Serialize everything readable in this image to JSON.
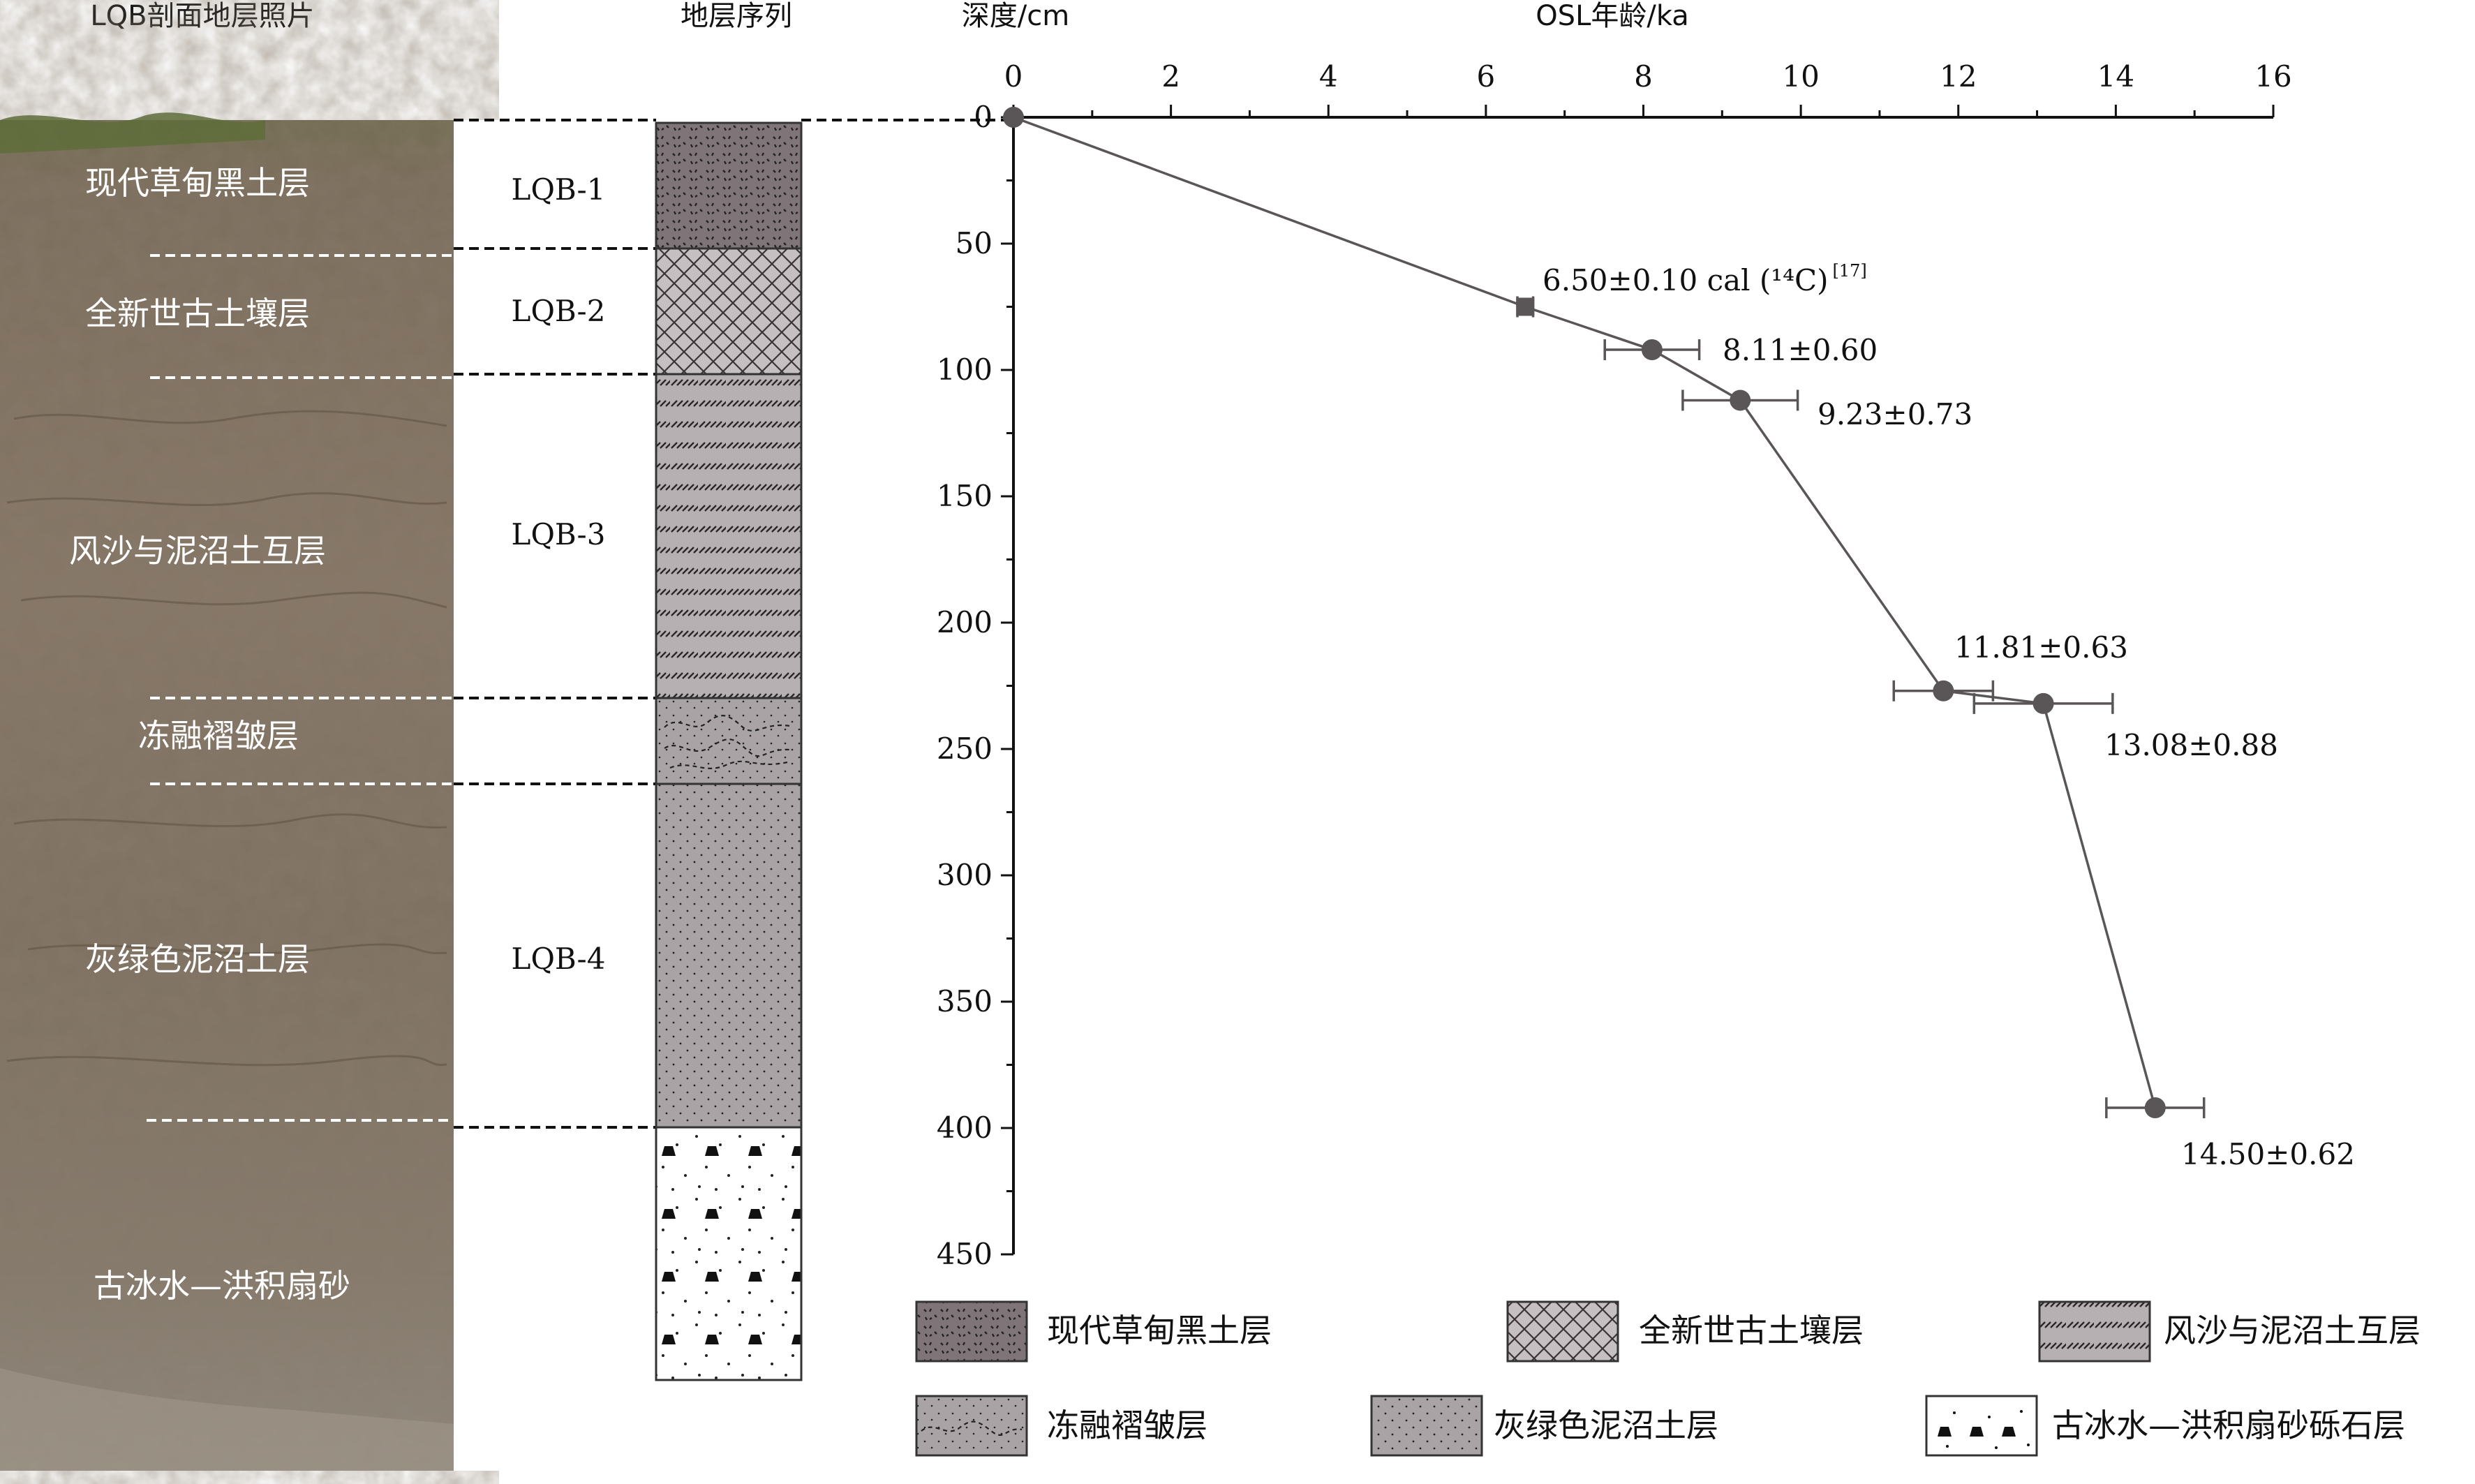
{
  "headers": {
    "photo": "LQB剖面地层照片",
    "sequence": "地层序列",
    "depth_axis": "深度/cm",
    "age_axis": "OSL年龄/ka"
  },
  "photo_layers": [
    "现代草甸黑土层",
    "全新世古土壤层",
    "风沙与泥沼土互层",
    "冻融褶皱层",
    "灰绿色泥沼土层",
    "古冰水—洪积扇砂"
  ],
  "samples": [
    "LQB-1",
    "LQB-2",
    "LQB-3",
    "LQB-4"
  ],
  "chart_data": {
    "type": "line",
    "xlabel": "OSL年龄/ka",
    "ylabel": "深度/cm",
    "xlim": [
      0,
      16
    ],
    "ylim": [
      0,
      450
    ],
    "y_inverted": true,
    "x_ticks": [
      "0",
      "2",
      "4",
      "6",
      "8",
      "10",
      "12",
      "14",
      "16"
    ],
    "y_ticks": [
      "0",
      "50",
      "100",
      "150",
      "200",
      "250",
      "300",
      "350",
      "400",
      "450"
    ],
    "grid": false,
    "series": [
      {
        "color": "#5a5557",
        "points": [
          {
            "age": 0,
            "depth": 0,
            "err": 0,
            "label": ""
          },
          {
            "age": 6.5,
            "depth": 75,
            "err": 0.1,
            "label": "6.50±0.10  cal (¹⁴C)",
            "ref": "[17]",
            "marker": "square"
          },
          {
            "age": 8.11,
            "depth": 92,
            "err": 0.6,
            "label": "8.11±0.60"
          },
          {
            "age": 9.23,
            "depth": 112,
            "err": 0.73,
            "label": "9.23±0.73"
          },
          {
            "age": 11.81,
            "depth": 227,
            "err": 0.63,
            "label": "11.81±0.63"
          },
          {
            "age": 13.08,
            "depth": 232,
            "err": 0.88,
            "label": "13.08±0.88"
          },
          {
            "age": 14.5,
            "depth": 392,
            "err": 0.62,
            "label": "14.50±0.62"
          }
        ]
      }
    ]
  },
  "legend": [
    {
      "label": "现代草甸黑土层",
      "pattern": "pat-black"
    },
    {
      "label": "全新世古土壤层",
      "pattern": "pat-paleo"
    },
    {
      "label": "风沙与泥沼土互层",
      "pattern": "pat-sand"
    },
    {
      "label": "冻融褶皱层",
      "pattern": "pat-cryo"
    },
    {
      "label": "灰绿色泥沼土层",
      "pattern": "pat-swamp"
    },
    {
      "label": "古冰水—洪积扇砂砾石层",
      "pattern": "pat-gravel"
    }
  ],
  "colors": {
    "column_fill": "#aaa3a5",
    "black_soil": "#7f7579",
    "line": "#5a5557",
    "photo_base": "#7a6d5e"
  }
}
